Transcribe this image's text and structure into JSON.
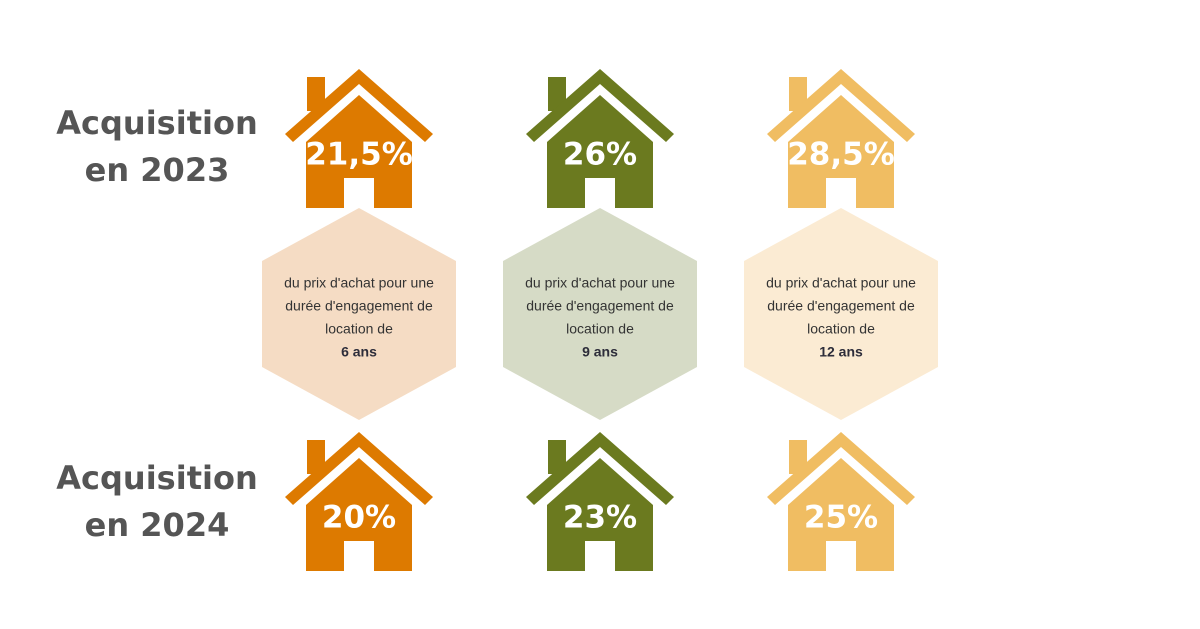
{
  "rows": [
    {
      "label": [
        "Acquisition",
        "en 2023"
      ],
      "values": [
        "21,5%",
        "26%",
        "28,5%"
      ]
    },
    {
      "label": [
        "Acquisition",
        "en 2024"
      ],
      "values": [
        "20%",
        "23%",
        "25%"
      ]
    }
  ],
  "hexagons": [
    {
      "text": [
        "du prix d'achat pour une",
        "durée d'engagement de",
        "location de"
      ],
      "duration": "6 ans"
    },
    {
      "text": [
        "du prix d'achat pour une",
        "durée d'engagement de",
        "location de"
      ],
      "duration": "9 ans"
    },
    {
      "text": [
        "du prix d'achat pour une",
        "durée d'engagement de",
        "location de"
      ],
      "duration": "12 ans"
    }
  ]
}
